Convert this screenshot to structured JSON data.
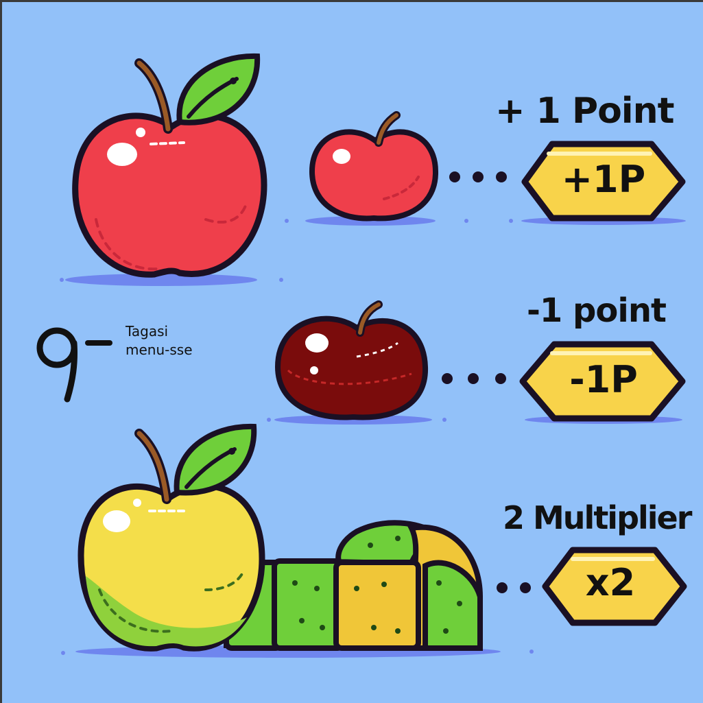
{
  "game": {
    "colors": {
      "background": "#92c1f9",
      "red_apple": "#ef3f4b",
      "rotten_apple": "#7a0c0c",
      "golden_apple": "#f4de4a",
      "leaf": "#6fcf3a",
      "badge": "#f8d34a",
      "outline": "#1a1024"
    },
    "items": [
      {
        "icon": "red-apple-icon",
        "title": "+ 1 Point",
        "badge": "+1P"
      },
      {
        "icon": "rotten-apple-icon",
        "title": "-1 point",
        "badge": "-1P"
      },
      {
        "icon": "golden-apple-icon",
        "title": "2 Multiplier",
        "badge": "x2"
      }
    ],
    "menu": {
      "key_icon": "q-key-icon",
      "line1": "Tagasi",
      "line2": "menu-sse"
    }
  }
}
